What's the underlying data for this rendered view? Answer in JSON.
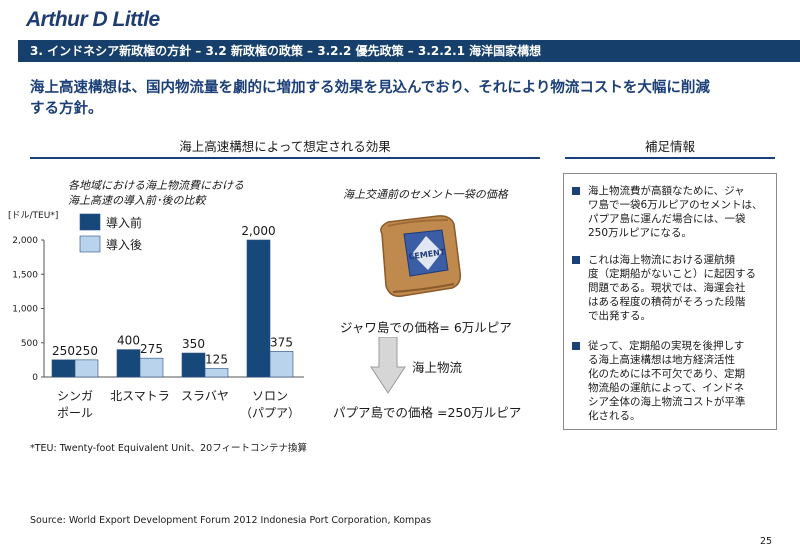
{
  "header": {
    "logo": "Arthur D Little",
    "breadcrumb": "3. インドネシア新政権の方針 – 3.2 新政権の政策 – 3.2.2 優先政策 – 3.2.2.1 海洋国家構想"
  },
  "headline": {
    "line1": "海上高速構想は、国内物流量を劇的に増加する効果を見込んでおり、それにより物流コストを大幅に削減",
    "line2": "する方針。"
  },
  "sections": {
    "left_title": "海上高速構想によって想定される効果",
    "right_title": "補足情報"
  },
  "chart_caption": {
    "line1": "各地域における海上物流費における",
    "line2": "海上高速の導入前･後の比較"
  },
  "chart_data": {
    "type": "bar",
    "ylabel": "[ドル/TEU*]",
    "ylim": [
      0,
      2000
    ],
    "yticks": [
      "0",
      "500",
      "1,000",
      "1,500",
      "2,000"
    ],
    "categories": [
      {
        "line1": "シンガ",
        "line2": "ポール"
      },
      {
        "line1": "北スマトラ",
        "line2": ""
      },
      {
        "line1": "スラバヤ",
        "line2": ""
      },
      {
        "line1": "ソロン",
        "line2": "（パプア）"
      }
    ],
    "series": [
      {
        "name": "導入前",
        "values": [
          250,
          400,
          350,
          2000
        ],
        "labels": [
          "250",
          "400",
          "350",
          "2,000"
        ],
        "color": "#17487a"
      },
      {
        "name": "導入後",
        "values": [
          250,
          275,
          125,
          375
        ],
        "labels": [
          "250",
          "275",
          "125",
          "375"
        ],
        "color": "#b9d3ec"
      }
    ]
  },
  "cement": {
    "caption": "海上交通前のセメント一袋の価格",
    "bag_text": "CEMENT",
    "price_java": "ジャワ島での価格= 6万ルピア",
    "flow_label": "海上物流",
    "price_papua": "パプア島での価格 =250万ルピア"
  },
  "notes": [
    {
      "lines": [
        "海上物流費が高額なために、ジャ",
        "ワ島で一袋6万ルピアのセメントは、",
        "パプア島に運んだ場合には、一袋",
        "250万ルピアになる。"
      ]
    },
    {
      "lines": [
        "これは海上物流における運航頻",
        "度（定期船がないこと）に起因する",
        "問題である。現状では、海運会社",
        "はある程度の積荷がそろった段階",
        "で出発する。"
      ]
    },
    {
      "lines": [
        "従って、定期船の実現を後押しす",
        "る海上高速構想は地方経済活性",
        "化のためには不可欠であり、定期",
        "物流船の運航によって、インドネ",
        "シア全体の海上物流コストが平準",
        "化される。"
      ]
    }
  ],
  "footnote": "*TEU: Twenty-foot Equivalent Unit、20フィートコンテナ換算",
  "source": "Source: World Export Development Forum 2012 Indonesia Port Corporation, Kompas",
  "page_number": "25"
}
